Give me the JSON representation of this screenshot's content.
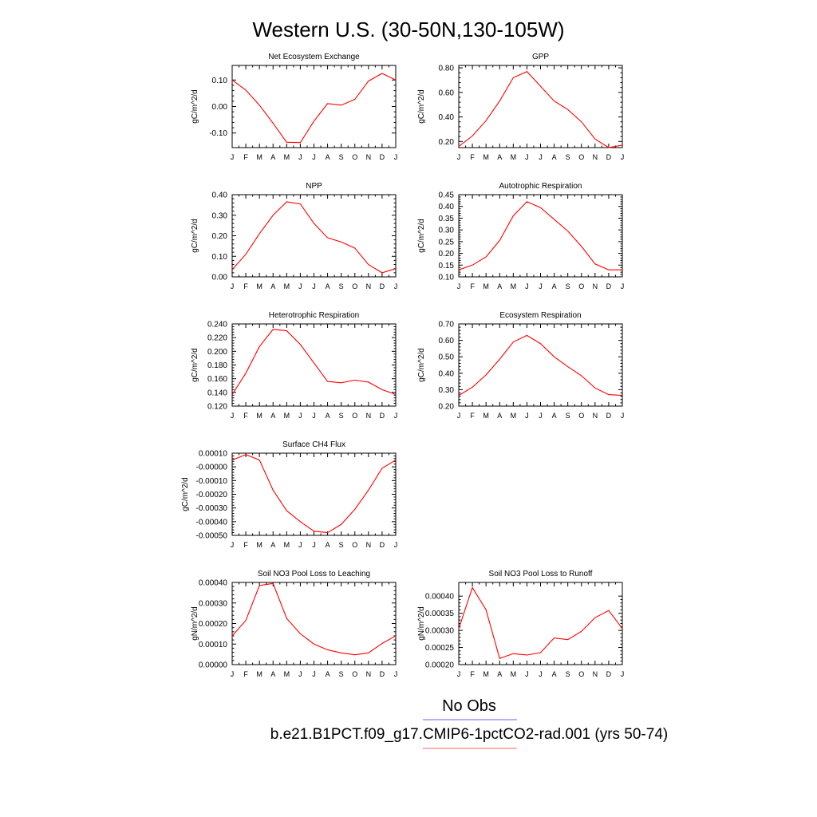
{
  "figure": {
    "title": "Western U.S. (30-50N,130-105W)",
    "legend": [
      {
        "label": "No Obs",
        "color": "#8080ff"
      },
      {
        "label": "b.e21.B1PCT.f09_g17.CMIP6-1pctCO2-rad.001 (yrs 50-74)",
        "color": "#ff8080"
      }
    ],
    "line_color": "#ff0000"
  },
  "chart_data": [
    {
      "type": "line",
      "title": "Net Ecosystem Exchange",
      "ylabel": "gC/m^2/d",
      "x": [
        "J",
        "F",
        "M",
        "A",
        "M",
        "J",
        "J",
        "A",
        "S",
        "O",
        "N",
        "D",
        "J"
      ],
      "values": [
        0.1,
        0.062,
        0.005,
        -0.063,
        -0.135,
        -0.136,
        -0.055,
        0.011,
        0.005,
        0.027,
        0.096,
        0.125,
        0.1
      ],
      "ylim": [
        -0.155,
        0.155
      ],
      "yticks": [
        -0.1,
        0.0,
        0.1
      ],
      "ytick_labels": [
        "-0.10",
        "0.00",
        "0.10"
      ]
    },
    {
      "type": "line",
      "title": "GPP",
      "ylabel": "gC/m^2/d",
      "x": [
        "J",
        "F",
        "M",
        "A",
        "M",
        "J",
        "J",
        "A",
        "S",
        "O",
        "N",
        "D",
        "J"
      ],
      "values": [
        0.16,
        0.245,
        0.37,
        0.53,
        0.72,
        0.77,
        0.65,
        0.53,
        0.46,
        0.36,
        0.22,
        0.15,
        0.17
      ],
      "ylim": [
        0.15,
        0.82
      ],
      "yticks": [
        0.2,
        0.4,
        0.6,
        0.8
      ],
      "ytick_labels": [
        "0.20",
        "0.40",
        "0.60",
        "0.80"
      ]
    },
    {
      "type": "line",
      "title": "NPP",
      "ylabel": "gC/m^2/d",
      "x": [
        "J",
        "F",
        "M",
        "A",
        "M",
        "J",
        "J",
        "A",
        "S",
        "O",
        "N",
        "D",
        "J"
      ],
      "values": [
        0.035,
        0.11,
        0.21,
        0.3,
        0.365,
        0.355,
        0.26,
        0.19,
        0.17,
        0.14,
        0.06,
        0.02,
        0.04
      ],
      "ylim": [
        0.0,
        0.4
      ],
      "yticks": [
        0.0,
        0.1,
        0.2,
        0.3,
        0.4
      ],
      "ytick_labels": [
        "0.00",
        "0.10",
        "0.20",
        "0.30",
        "0.40"
      ]
    },
    {
      "type": "line",
      "title": "Autotrophic Respiration",
      "ylabel": "gC/m^2/d",
      "x": [
        "J",
        "F",
        "M",
        "A",
        "M",
        "J",
        "J",
        "A",
        "S",
        "O",
        "N",
        "D",
        "J"
      ],
      "values": [
        0.13,
        0.15,
        0.185,
        0.255,
        0.36,
        0.42,
        0.395,
        0.345,
        0.295,
        0.23,
        0.155,
        0.13,
        0.13
      ],
      "ylim": [
        0.1,
        0.45
      ],
      "yticks": [
        0.1,
        0.15,
        0.2,
        0.25,
        0.3,
        0.35,
        0.4,
        0.45
      ],
      "ytick_labels": [
        "0.10",
        "0.15",
        "0.20",
        "0.25",
        "0.30",
        "0.35",
        "0.40",
        "0.45"
      ]
    },
    {
      "type": "line",
      "title": "Heterotrophic Respiration",
      "ylabel": "gC/m^2/d",
      "x": [
        "J",
        "F",
        "M",
        "A",
        "M",
        "J",
        "J",
        "A",
        "S",
        "O",
        "N",
        "D",
        "J"
      ],
      "values": [
        0.137,
        0.168,
        0.207,
        0.232,
        0.23,
        0.21,
        0.183,
        0.156,
        0.154,
        0.158,
        0.155,
        0.144,
        0.137
      ],
      "ylim": [
        0.12,
        0.24
      ],
      "yticks": [
        0.12,
        0.14,
        0.16,
        0.18,
        0.2,
        0.22,
        0.24
      ],
      "ytick_labels": [
        "0.120",
        "0.140",
        "0.160",
        "0.180",
        "0.200",
        "0.220",
        "0.240"
      ]
    },
    {
      "type": "line",
      "title": "Ecosystem Respiration",
      "ylabel": "gC/m^2/d",
      "x": [
        "J",
        "F",
        "M",
        "A",
        "M",
        "J",
        "J",
        "A",
        "S",
        "O",
        "N",
        "D",
        "J"
      ],
      "values": [
        0.265,
        0.315,
        0.39,
        0.485,
        0.59,
        0.63,
        0.58,
        0.5,
        0.44,
        0.385,
        0.31,
        0.27,
        0.265
      ],
      "ylim": [
        0.2,
        0.7
      ],
      "yticks": [
        0.2,
        0.3,
        0.4,
        0.5,
        0.6,
        0.7
      ],
      "ytick_labels": [
        "0.20",
        "0.30",
        "0.40",
        "0.50",
        "0.60",
        "0.70"
      ]
    },
    {
      "type": "line",
      "title": "Surface CH4 Flux",
      "ylabel": "gC/m^2/d",
      "x": [
        "J",
        "F",
        "M",
        "A",
        "M",
        "J",
        "J",
        "A",
        "S",
        "O",
        "N",
        "D",
        "J"
      ],
      "values": [
        5e-05,
        9e-05,
        5e-05,
        -0.00017,
        -0.00032,
        -0.0004,
        -0.00047,
        -0.00048,
        -0.00042,
        -0.00031,
        -0.00017,
        -1e-05,
        5e-05
      ],
      "ylim": [
        -0.0005,
        0.0001
      ],
      "yticks": [
        -0.0005,
        -0.0004,
        -0.0003,
        -0.0002,
        -0.0001,
        0.0,
        0.0001
      ],
      "ytick_labels": [
        "-0.00050",
        "-0.00040",
        "-0.00030",
        "-0.00020",
        "-0.00010",
        "-0.00000",
        "0.00010"
      ]
    },
    {
      "type": "line",
      "title": "Soil NO3 Pool Loss to Leaching",
      "ylabel": "gN/m^2/d",
      "x": [
        "J",
        "F",
        "M",
        "A",
        "M",
        "J",
        "J",
        "A",
        "S",
        "O",
        "N",
        "D",
        "J"
      ],
      "values": [
        0.00014,
        0.000215,
        0.000385,
        0.000395,
        0.000225,
        0.00015,
        0.0001,
        7.2e-05,
        5.7e-05,
        4.8e-05,
        5.7e-05,
        0.000103,
        0.00014
      ],
      "ylim": [
        0.0,
        0.0004
      ],
      "yticks": [
        0.0,
        0.0001,
        0.0002,
        0.0003,
        0.0004
      ],
      "ytick_labels": [
        "0.00000",
        "0.00010",
        "0.00020",
        "0.00030",
        "0.00040"
      ]
    },
    {
      "type": "line",
      "title": "Soil NO3 Pool Loss to Runoff",
      "ylabel": "gN/m^2/d",
      "x": [
        "J",
        "F",
        "M",
        "A",
        "M",
        "J",
        "J",
        "A",
        "S",
        "O",
        "N",
        "D",
        "J"
      ],
      "values": [
        0.000305,
        0.000425,
        0.00036,
        0.000218,
        0.000232,
        0.000228,
        0.000235,
        0.000278,
        0.000273,
        0.000297,
        0.000337,
        0.000358,
        0.000305
      ],
      "ylim": [
        0.0002,
        0.00044
      ],
      "yticks": [
        0.0002,
        0.00025,
        0.0003,
        0.00035,
        0.0004
      ],
      "ytick_labels": [
        "0.00020",
        "0.00025",
        "0.00030",
        "0.00035",
        "0.00040"
      ]
    }
  ]
}
